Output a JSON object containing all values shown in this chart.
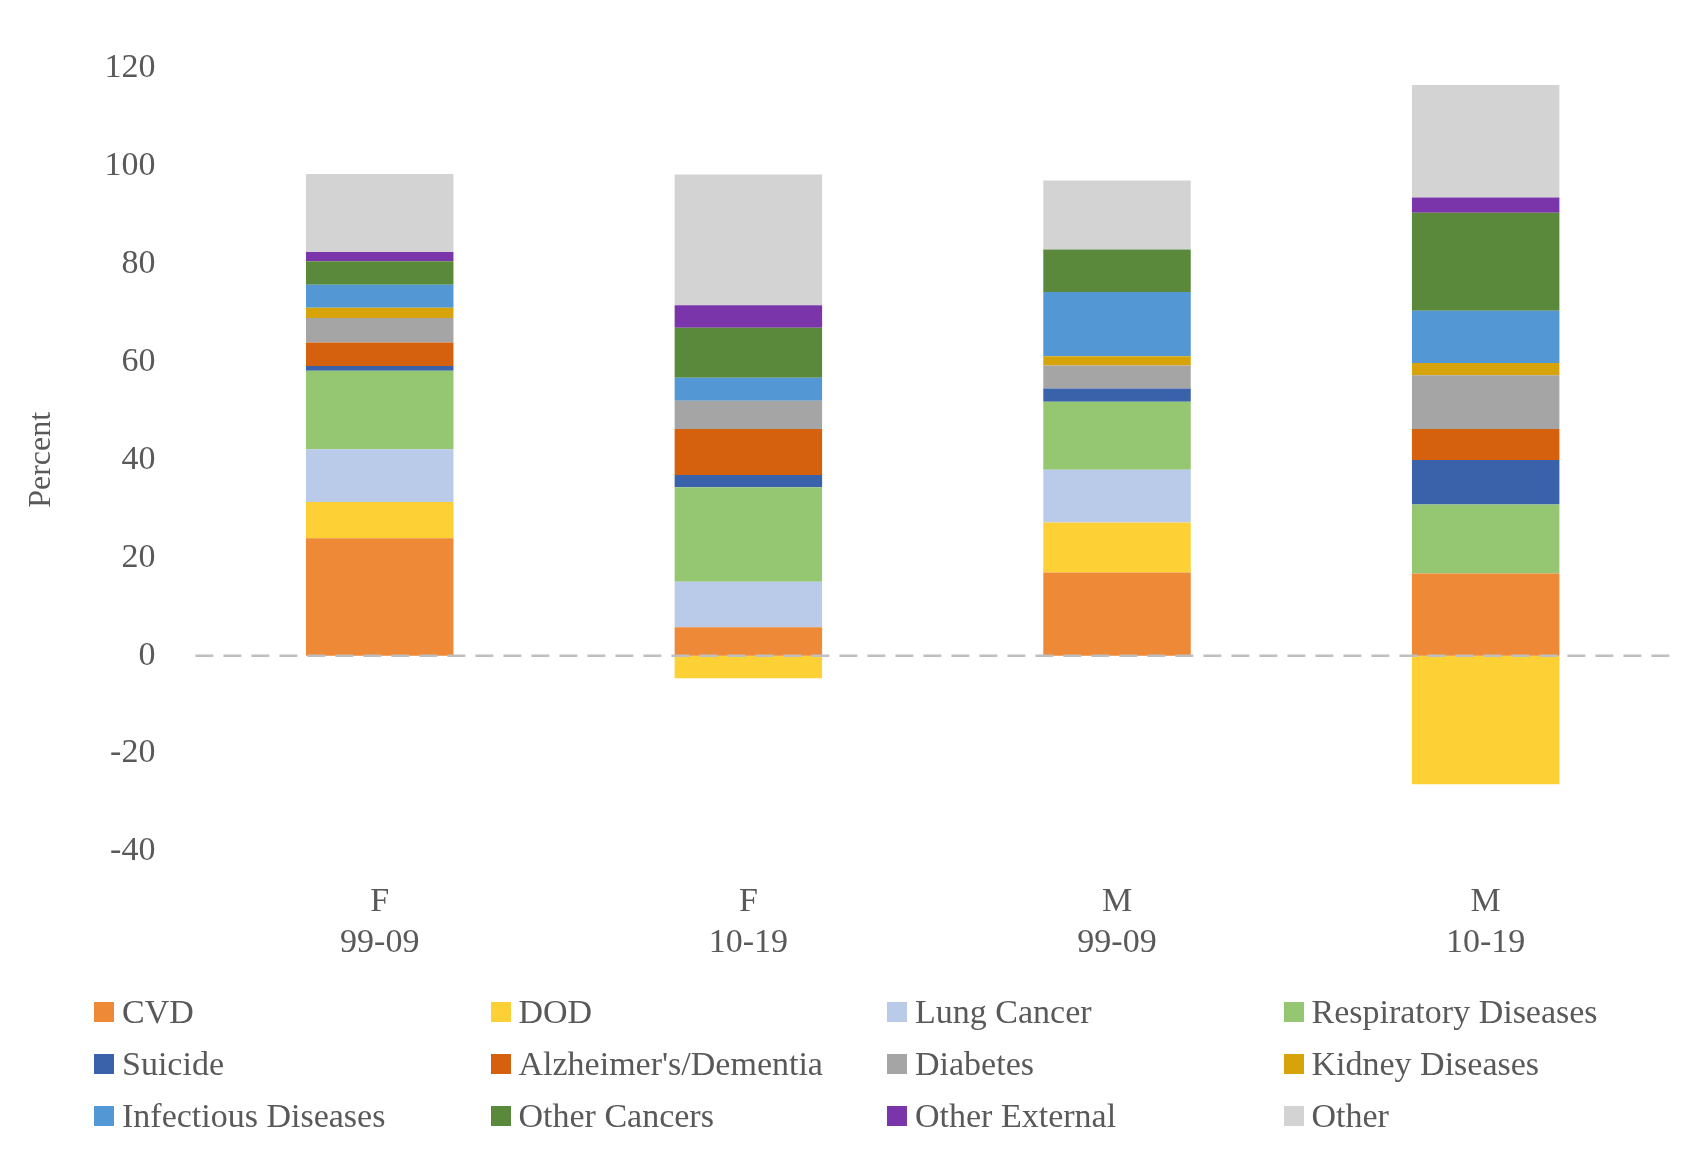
{
  "chart_data": {
    "type": "bar",
    "stacked": true,
    "ylabel": "Percent",
    "categories": [
      "F\n99-09",
      "F\n10-19",
      "M\n99-09",
      "M\n10-19"
    ],
    "ylim": [
      -40,
      120
    ],
    "yticks": [
      -40,
      -20,
      0,
      20,
      40,
      60,
      80,
      100,
      120
    ],
    "grid": false,
    "legend": "bottom",
    "ref_lines": [
      {
        "axis": "y",
        "value": 0,
        "color": "#bfbfbf",
        "line_style": "dashed"
      }
    ],
    "series": [
      {
        "name": "CVD",
        "color": "#ed8937",
        "values": [
          24,
          5.8,
          17,
          16.8
        ]
      },
      {
        "name": "DOD",
        "color": "#fdd136",
        "values": [
          7.4,
          -4.6,
          10.2,
          -26.3
        ]
      },
      {
        "name": "Lung Cancer",
        "color": "#b9cbe9",
        "values": [
          10.8,
          9.3,
          10.8,
          0
        ]
      },
      {
        "name": "Respiratory Diseases",
        "color": "#95c672",
        "values": [
          16,
          19.3,
          13.9,
          14.1
        ]
      },
      {
        "name": "Suicide",
        "color": "#3a62ab",
        "values": [
          1,
          2.5,
          2.7,
          9.1
        ]
      },
      {
        "name": "Alzheimer's/Dementia",
        "color": "#d5600e",
        "values": [
          4.8,
          9.4,
          0,
          6.3
        ]
      },
      {
        "name": "Diabetes",
        "color": "#a5a5a5",
        "values": [
          5,
          5.8,
          4.7,
          11
        ]
      },
      {
        "name": "Kidney Diseases",
        "color": "#d6a40a",
        "values": [
          2.1,
          0,
          1.9,
          2.5
        ]
      },
      {
        "name": "Infectious Diseases",
        "color": "#5398d5",
        "values": [
          4.7,
          4.7,
          13.1,
          10.7
        ]
      },
      {
        "name": "Other Cancers",
        "color": "#5b893b",
        "values": [
          4.8,
          10.2,
          8.7,
          20
        ]
      },
      {
        "name": "Other External",
        "color": "#7b35aa",
        "values": [
          1.9,
          4.6,
          0,
          3.1
        ]
      },
      {
        "name": "Other",
        "color": "#d3d3d3",
        "values": [
          15.9,
          26.7,
          14.1,
          23
        ]
      }
    ]
  }
}
